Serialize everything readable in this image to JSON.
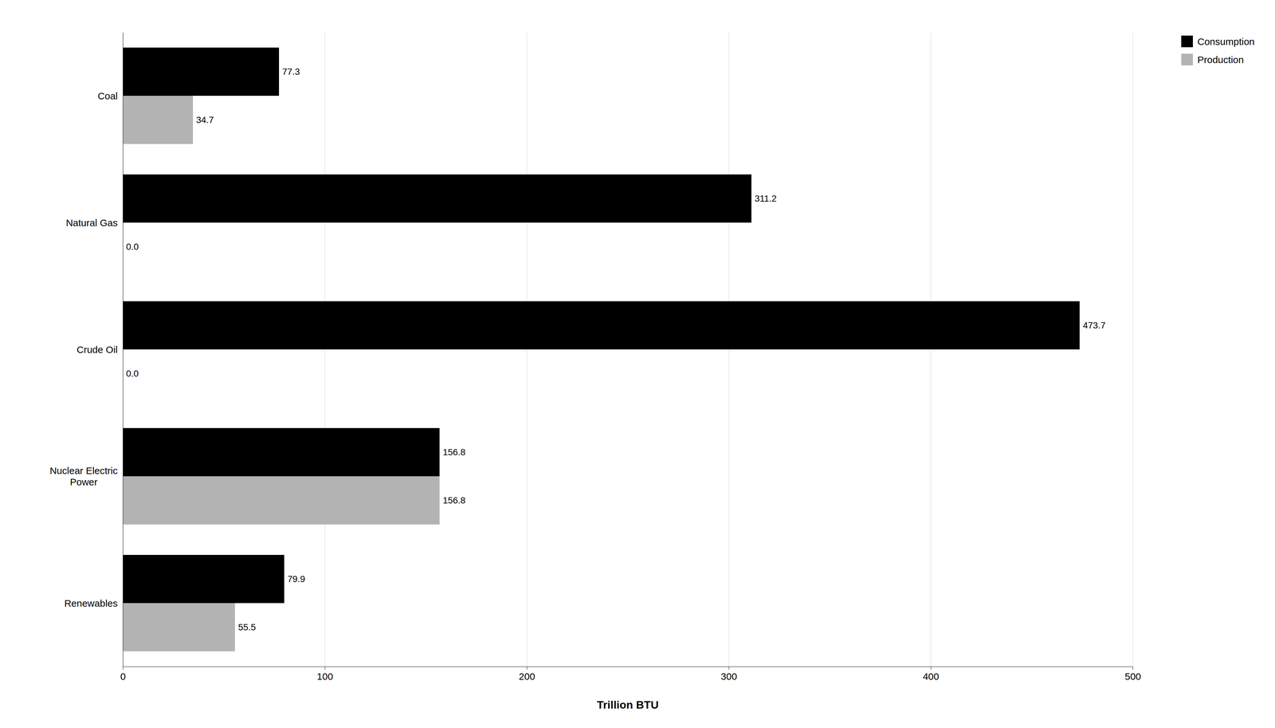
{
  "chart_data": {
    "type": "bar",
    "orientation": "horizontal",
    "categories": [
      "Renewables",
      "Nuclear Electric\nPower",
      "Crude Oil",
      "Natural Gas",
      "Coal"
    ],
    "series": [
      {
        "name": "Consumption",
        "color": "#000000",
        "values": [
          79.9,
          156.8,
          473.7,
          311.2,
          77.3
        ]
      },
      {
        "name": "Production",
        "color": "#b3b3b3",
        "values": [
          55.5,
          156.8,
          0.0,
          0.0,
          34.7
        ],
        "value_labels": [
          "55.5",
          "156.8",
          "0.0",
          "0.0",
          "34.7"
        ]
      }
    ],
    "xlabel": "Trillion BTU",
    "xlim": [
      0,
      500
    ],
    "xticks": [
      0,
      100,
      200,
      300,
      400,
      500
    ],
    "grid": true,
    "legend": "upper right",
    "data_labels": true
  }
}
